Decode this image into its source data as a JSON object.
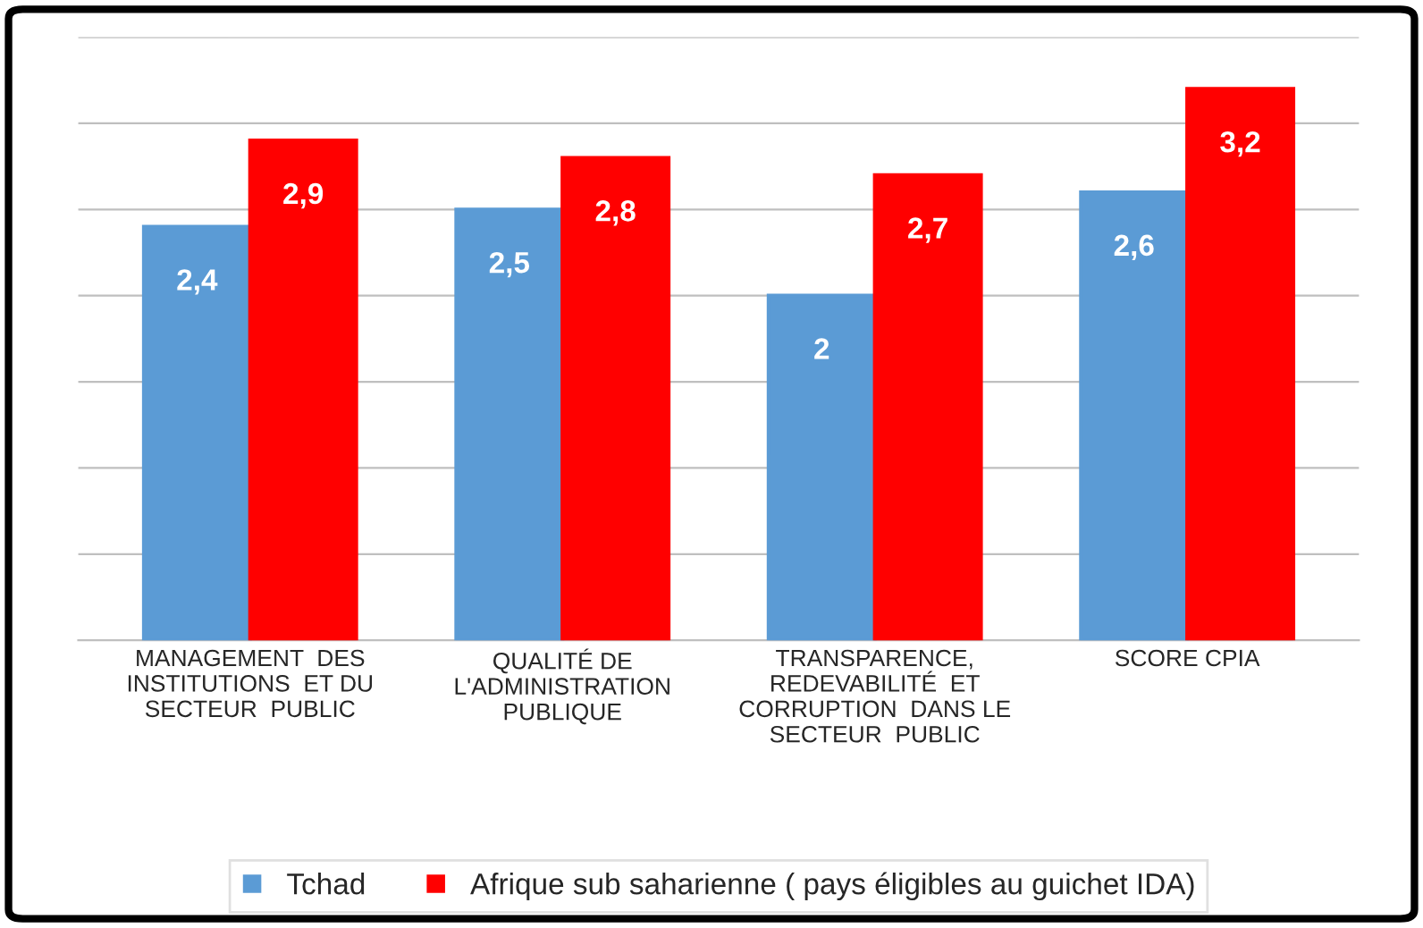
{
  "chart_data": {
    "type": "bar",
    "categories": [
      "MANAGEMENT  DES\nINSTITUTIONS  ET DU\nSECTEUR  PUBLIC",
      "QUALITÉ DE\nL'ADMINISTRATION\nPUBLIQUE",
      "TRANSPARENCE,\nREDEVABILITÉ  ET\nCORRUPTION  DANS LE\nSECTEUR  PUBLIC",
      "SCORE CPIA"
    ],
    "series": [
      {
        "name": "Tchad",
        "color": "#5b9bd5",
        "values": [
          2.4,
          2.5,
          2,
          2.6
        ],
        "value_labels": [
          "2,4",
          "2,5",
          "2",
          "2,6"
        ]
      },
      {
        "name": "Afrique sub saharienne ( pays éligibles au guichet IDA)",
        "color": "#ff0000",
        "values": [
          2.9,
          2.8,
          2.7,
          3.2
        ],
        "value_labels": [
          "2,9",
          "2,8",
          "2,7",
          "3,2"
        ]
      }
    ],
    "ylim": [
      0,
      3.5
    ],
    "yticks": [
      {
        "value": 0,
        "label": null
      },
      {
        "value": 0.5,
        "label": null
      },
      {
        "value": 1,
        "label": null
      },
      {
        "value": 1.5,
        "label": null
      },
      {
        "value": 2,
        "label": null
      },
      {
        "value": 2.5,
        "label": null
      },
      {
        "value": 3,
        "label": null
      },
      {
        "value": 3.5,
        "label": null
      }
    ],
    "tick_labels": "x",
    "grid": "y",
    "legend": "bottom"
  }
}
